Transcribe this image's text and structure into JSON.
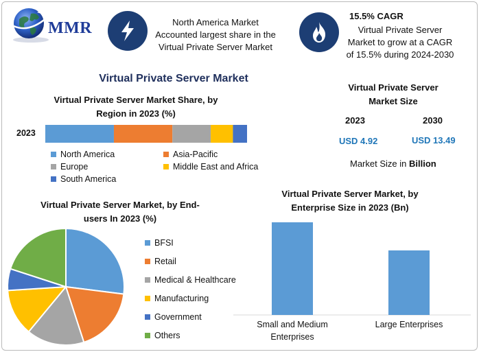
{
  "logo": {
    "text": "MMR"
  },
  "info_left": {
    "icon": "lightning-icon",
    "line1": "North America Market",
    "line2": "Accounted largest share in the",
    "line3": "Virtual Private Server Market"
  },
  "info_right": {
    "icon": "flame-icon",
    "headline": "15.5% CAGR",
    "line1": "Virtual Private Server",
    "line2": "Market to grow at a CAGR",
    "line3": "of 15.5% during 2024-2030"
  },
  "main_title": "Virtual Private Server Market",
  "market_size": {
    "title_line1": "Virtual Private Server",
    "title_line2": "Market Size",
    "year1": "2023",
    "year2": "2030",
    "value1": "USD 4.92",
    "value2": "USD 13.49",
    "note_prefix": "Market Size in ",
    "note_unit": "Billion"
  },
  "colors": {
    "blue": "#5b9bd5",
    "orange": "#ed7d31",
    "gray": "#a5a5a5",
    "yellow": "#ffc000",
    "darkblue": "#4472c4",
    "green": "#70ad47",
    "navy": "#1d3e74"
  },
  "chart_data": [
    {
      "type": "bar",
      "orientation": "horizontal-stacked",
      "title_line1": "Virtual Private Server Market Share, by",
      "title_line2": "Region in 2023 (%)",
      "categories": [
        "2023"
      ],
      "series": [
        {
          "name": "North America",
          "values": [
            34
          ],
          "color": "#5b9bd5"
        },
        {
          "name": "Asia-Pacific",
          "values": [
            29
          ],
          "color": "#ed7d31"
        },
        {
          "name": "Europe",
          "values": [
            19
          ],
          "color": "#a5a5a5"
        },
        {
          "name": "Middle East and Africa",
          "values": [
            11
          ],
          "color": "#ffc000"
        },
        {
          "name": "South America",
          "values": [
            7
          ],
          "color": "#4472c4"
        }
      ],
      "xlim": [
        0,
        100
      ],
      "legend": "bottom"
    },
    {
      "type": "pie",
      "title_line1": "Virtual Private Server Market, by End-",
      "title_line2": "users In 2023 (%)",
      "labels": [
        "BFSI",
        "Retail",
        "Medical & Healthcare",
        "Manufacturing",
        "Government",
        "Others"
      ],
      "values": [
        27,
        18,
        16,
        13,
        6,
        20
      ],
      "colors": [
        "#5b9bd5",
        "#ed7d31",
        "#a5a5a5",
        "#ffc000",
        "#4472c4",
        "#70ad47"
      ],
      "legend": "right"
    },
    {
      "type": "bar",
      "title_line1": "Virtual Private Server Market, by",
      "title_line2": "Enterprise Size in 2023 (Bn)",
      "categories": [
        "Small and Medium Enterprises",
        "Large Enterprises"
      ],
      "category_lines": [
        [
          "Small and Medium",
          "Enterprises"
        ],
        [
          "Large Enterprises"
        ]
      ],
      "values": [
        2.9,
        2.02
      ],
      "ylim": [
        0,
        3.2
      ],
      "color": "#5b9bd5"
    }
  ]
}
